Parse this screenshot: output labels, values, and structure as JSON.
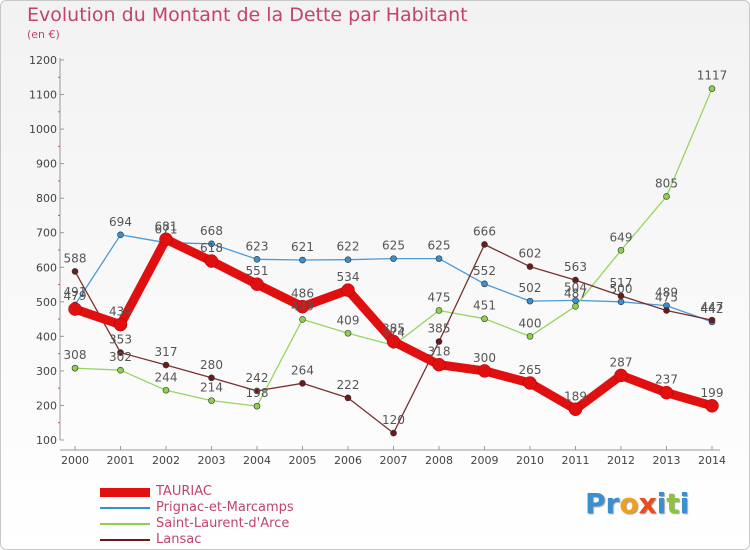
{
  "header": {
    "title": "Evolution du Montant de la Dette par Habitant",
    "subtitle": "(en €)"
  },
  "brand": {
    "letters": [
      "P",
      "r",
      "o",
      "x",
      "i",
      "t",
      "i"
    ],
    "colors": [
      "#3a8fd0",
      "#3a8fd0",
      "#f0a020",
      "#e84c1c",
      "#3a8fd0",
      "#8cc43c",
      "#3a8fd0"
    ]
  },
  "chart_data": {
    "type": "line",
    "title": "Evolution du Montant de la Dette par Habitant",
    "subtitle": "(en €)",
    "x": [
      "2000",
      "2001",
      "2002",
      "2003",
      "2004",
      "2005",
      "2006",
      "2007",
      "2008",
      "2009",
      "2010",
      "2011",
      "2012",
      "2013",
      "2014"
    ],
    "ylim": [
      100,
      1200
    ],
    "yticks": [
      100,
      200,
      300,
      400,
      500,
      600,
      700,
      800,
      900,
      1000,
      1100,
      1200
    ],
    "grid": false,
    "legend_position": "bottom-left",
    "series": [
      {
        "name": "TAURIAC",
        "color": "#e01010",
        "label_color": "#555555",
        "values": [
          479,
          434,
          681,
          618,
          551,
          486,
          534,
          385,
          318,
          300,
          265,
          189,
          287,
          237,
          199
        ]
      },
      {
        "name": "Prignac-et-Marcamps",
        "color": "#3a8fd0",
        "label_color": "#555555",
        "values": [
          491,
          694,
          671,
          668,
          623,
          621,
          622,
          625,
          625,
          552,
          502,
          504,
          500,
          489,
          442
        ]
      },
      {
        "name": "Saint-Laurent-d'Arce",
        "color": "#8cd050",
        "label_color": "#555555",
        "values": [
          308,
          302,
          244,
          214,
          198,
          449,
          409,
          374,
          475,
          451,
          400,
          487,
          649,
          805,
          1117
        ]
      },
      {
        "name": "Lansac",
        "color": "#6b1a1a",
        "label_color": "#555555",
        "values": [
          588,
          353,
          317,
          280,
          242,
          264,
          222,
          120,
          385,
          666,
          602,
          563,
          517,
          475,
          447
        ]
      }
    ]
  }
}
